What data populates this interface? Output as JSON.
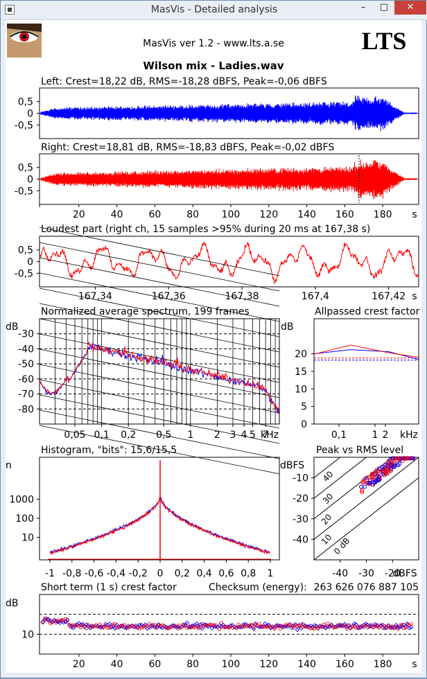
{
  "window": {
    "title": "MasVis - Detailed analysis",
    "minimize": "–",
    "maximize": "□",
    "close": "✕"
  },
  "header": {
    "version": "MasVis ver 1.2 - www.lts.a.se",
    "logo_text": "LTS",
    "file_title": "Wilson mix - Ladies.wav"
  },
  "colors": {
    "left": "#0000ff",
    "right": "#ff0000",
    "grid": "#000000"
  },
  "left_channel": {
    "label": "Left: Crest=18,22 dB, RMS=-18,28 dBFS, Peak=-0,06 dBFS",
    "y_ticks": [
      "0,5",
      "0",
      "-0,5"
    ]
  },
  "right_channel": {
    "label": "Right: Crest=18,81 dB, RMS=-18,83 dBFS, Peak=-0,02 dBFS",
    "y_ticks": [
      "0,5",
      "0",
      "-0,5"
    ],
    "x_ticks": [
      "20",
      "40",
      "60",
      "80",
      "100",
      "120",
      "140",
      "160",
      "180"
    ],
    "x_unit": "s"
  },
  "loudest": {
    "label": "Loudest part (right ch, 15 samples >95% during 20 ms at 167,38 s)",
    "y_ticks": [
      "0,5",
      "0",
      "-0,5"
    ],
    "x_ticks": [
      "167,34",
      "167,36",
      "167,38",
      "167,4",
      "167,42"
    ],
    "x_unit": "s"
  },
  "spectrum": {
    "label": "Normalized average spectrum, 199 frames",
    "y_unit": "dB",
    "y_ticks": [
      "-30",
      "-40",
      "-50",
      "-60",
      "-70",
      "-80"
    ],
    "x_ticks": [
      "0,05",
      "0,1",
      "0,2",
      "0,5",
      "1",
      "2",
      "3",
      "4",
      "5",
      "7"
    ],
    "x_unit": "kHz"
  },
  "allpass": {
    "label": "Allpassed crest factor",
    "y_unit": "dB",
    "y_ticks": [
      "20",
      "15",
      "10",
      "5",
      "0"
    ],
    "x_ticks": [
      "0,1",
      "1",
      "2"
    ],
    "x_unit": "kHz"
  },
  "histogram": {
    "label": "Histogram, \"bits\": 15,6/15,5",
    "y_unit": "n",
    "y_ticks": [
      "1000",
      "100",
      "10"
    ],
    "x_ticks": [
      "-1",
      "-0,8",
      "-0,6",
      "-0,4",
      "-0,2",
      "0",
      "0,2",
      "0,4",
      "0,6",
      "0,8",
      "1"
    ]
  },
  "peak_rms": {
    "label": "Peak vs RMS level",
    "y_unit": "dBFS",
    "y_ticks": [
      "-10",
      "-20",
      "-30",
      "-40"
    ],
    "x_ticks": [
      "-40",
      "-30",
      "-20"
    ],
    "x_unit": "dBFS",
    "diag_labels": [
      "40",
      "30",
      "20",
      "10",
      "0 dB"
    ]
  },
  "crest": {
    "label": "Short term (1 s) crest factor",
    "checksum_label": "Checksum (energy):",
    "checksum_value": "263 626 076 887 105",
    "y_unit": "dB",
    "y_ticks": [
      "10"
    ],
    "x_ticks": [
      "20",
      "40",
      "60",
      "80",
      "100",
      "120",
      "140",
      "160",
      "180"
    ],
    "x_unit": "s"
  }
}
